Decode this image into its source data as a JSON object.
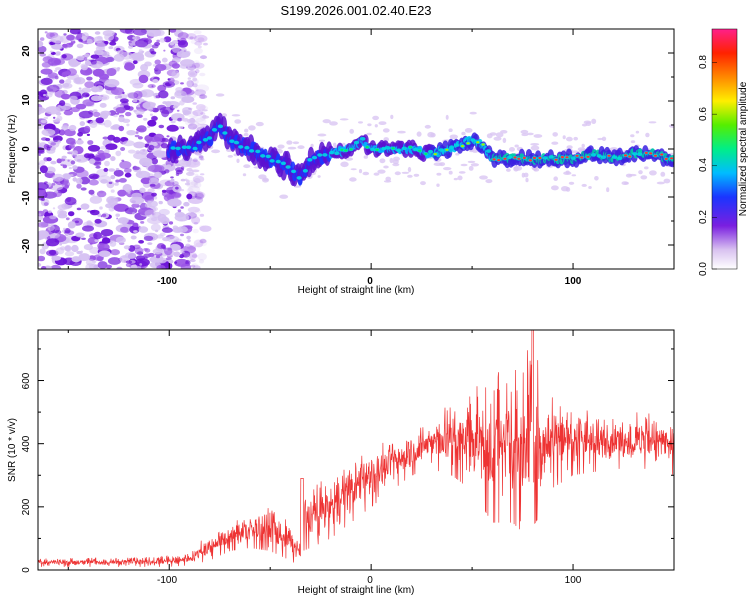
{
  "chart_data": [
    {
      "type": "heatmap",
      "title": "S199.2026.001.02.40.E23",
      "xlabel": "Height of straight line (km)",
      "ylabel": "Frequency (Hz)",
      "xlim": [
        -165,
        150
      ],
      "ylim": [
        -25,
        25
      ],
      "xticks": [
        "-100",
        "0",
        "100"
      ],
      "yticks": [
        "20",
        "10",
        "0",
        "-10",
        "-20"
      ],
      "colorbar_label": "Normalized spectral amplitude",
      "colorbar_ticks": [
        "0.0",
        "0.2",
        "0.4",
        "0.6",
        "0.8"
      ],
      "colorbar_range": [
        0,
        0.93
      ],
      "ridge": {
        "x": [
          -100,
          -90,
          -80,
          -75,
          -70,
          -60,
          -50,
          -40,
          -35,
          -30,
          -20,
          -10,
          -5,
          0,
          10,
          20,
          30,
          40,
          45,
          50,
          55,
          60,
          70,
          80,
          90,
          100,
          110,
          120,
          130,
          140,
          148
        ],
        "y": [
          0,
          0,
          2,
          5,
          2,
          0,
          -2,
          -4,
          -6,
          -2,
          -1,
          0,
          2,
          0,
          0,
          0,
          -1,
          0,
          1,
          2,
          1,
          -2,
          -2,
          -2,
          -2,
          -2,
          -1,
          -2,
          -1,
          -1,
          -2
        ]
      },
      "noise_region_x": [
        -165,
        -90
      ]
    },
    {
      "type": "line",
      "xlabel": "Height of straight line (km)",
      "ylabel": "SNR (10 * v/v)",
      "xlim": [
        -165,
        150
      ],
      "ylim": [
        0,
        760
      ],
      "xticks": [
        "-100",
        "0",
        "100"
      ],
      "yticks": [
        "0",
        "200",
        "400",
        "600"
      ],
      "series": [
        {
          "name": "SNR",
          "color": "#ee3333",
          "envelope_x": [
            -165,
            -120,
            -100,
            -90,
            -80,
            -70,
            -60,
            -50,
            -40,
            -35,
            -34,
            -30,
            -20,
            -10,
            0,
            10,
            20,
            30,
            40,
            50,
            60,
            70,
            75,
            80,
            85,
            90,
            100,
            110,
            120,
            130,
            140,
            150
          ],
          "envelope_low": [
            10,
            10,
            10,
            15,
            30,
            60,
            70,
            60,
            30,
            10,
            60,
            70,
            100,
            150,
            200,
            250,
            300,
            320,
            300,
            250,
            150,
            150,
            120,
            140,
            180,
            260,
            300,
            310,
            320,
            320,
            320,
            300
          ],
          "envelope_high": [
            40,
            40,
            45,
            60,
            120,
            150,
            180,
            200,
            150,
            80,
            290,
            260,
            300,
            350,
            400,
            420,
            450,
            480,
            540,
            580,
            620,
            660,
            640,
            760,
            600,
            560,
            520,
            500,
            500,
            500,
            500,
            480
          ]
        }
      ]
    }
  ],
  "colors": {
    "signal_low": "#8a2be2",
    "signal_mid": "#0066ff",
    "signal_high": "#ff2d55",
    "line": "#ee3333"
  }
}
